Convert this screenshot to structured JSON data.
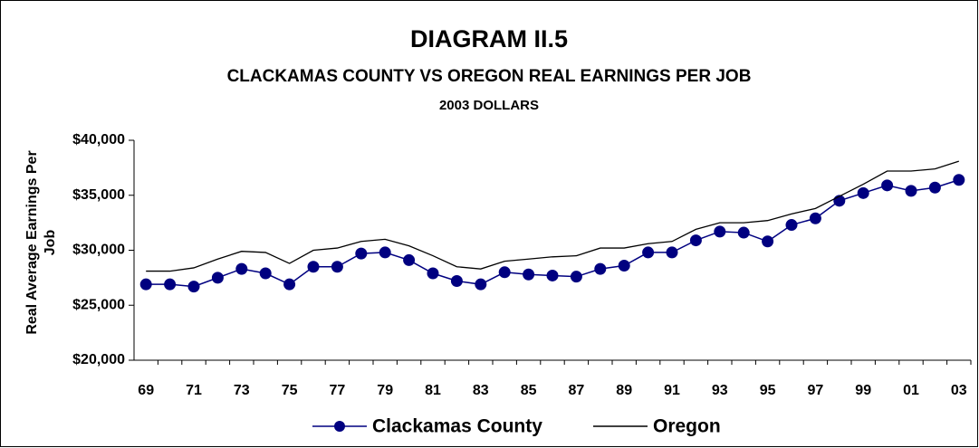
{
  "chart_data": {
    "type": "line",
    "title": "DIAGRAM II.5",
    "subtitle": "CLACKAMAS COUNTY VS OREGON REAL EARNINGS PER JOB",
    "note": "2003 DOLLARS",
    "y_label": [
      "Real Average Earnings Per",
      "Job"
    ],
    "categories": [
      "69",
      null,
      "71",
      null,
      "73",
      null,
      "75",
      null,
      "77",
      null,
      "79",
      null,
      "81",
      null,
      "83",
      null,
      "85",
      null,
      "87",
      null,
      "89",
      null,
      "91",
      null,
      "93",
      null,
      "95",
      null,
      "97",
      null,
      "99",
      null,
      "01",
      null,
      "03"
    ],
    "series": [
      {
        "name": "Clackamas County",
        "color": "#000080",
        "marker": "circle",
        "values": [
          26900,
          26900,
          26700,
          27500,
          28300,
          27900,
          26900,
          28500,
          28500,
          29700,
          29800,
          29100,
          27900,
          27200,
          26900,
          28000,
          27800,
          27700,
          27600,
          28300,
          28600,
          29800,
          29800,
          30900,
          31700,
          31600,
          30800,
          32300,
          32900,
          34500,
          35200,
          35900,
          35400,
          35700,
          36400
        ]
      },
      {
        "name": "Oregon",
        "color": "#000000",
        "values": [
          28100,
          28100,
          28400,
          29200,
          29900,
          29800,
          28800,
          30000,
          30200,
          30800,
          31000,
          30400,
          29500,
          28500,
          28300,
          29000,
          29200,
          29400,
          29500,
          30200,
          30200,
          30600,
          30800,
          31900,
          32500,
          32500,
          32700,
          33300,
          33800,
          34900,
          36000,
          37200,
          37200,
          37400,
          38100
        ]
      }
    ],
    "ylim": [
      20000,
      40000
    ],
    "yticks": [
      {
        "value": 20000,
        "label": "$20,000"
      },
      {
        "value": 25000,
        "label": "$25,000"
      },
      {
        "value": 30000,
        "label": "$30,000"
      },
      {
        "value": 35000,
        "label": "$35,000"
      },
      {
        "value": 40000,
        "label": "$40,000"
      }
    ],
    "legend": "bottom"
  }
}
